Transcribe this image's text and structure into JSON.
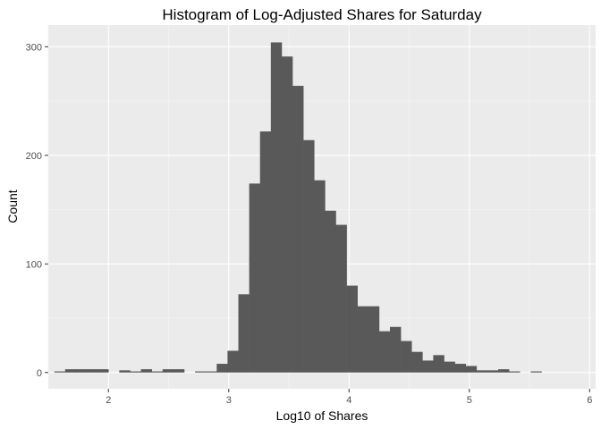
{
  "chart_data": {
    "type": "bar",
    "title": "Histogram of Log-Adjusted Shares for Saturday",
    "xlabel": "Log10 of Shares",
    "ylabel": "Count",
    "xlim": [
      1.5,
      6.05
    ],
    "ylim": [
      -15,
      320
    ],
    "x_ticks": [
      2,
      3,
      4,
      5,
      6
    ],
    "y_ticks": [
      0,
      100,
      200,
      300
    ],
    "x_tick_labels": [
      "2",
      "3",
      "4",
      "5",
      "6"
    ],
    "y_tick_labels": [
      "0",
      "100",
      "200",
      "300"
    ],
    "grid": true,
    "bin_width": 0.09,
    "bin_start": 1.55,
    "values": [
      1,
      3,
      3,
      3,
      3,
      0,
      2,
      1,
      3,
      1,
      3,
      3,
      0,
      1,
      1,
      8,
      20,
      72,
      174,
      222,
      304,
      291,
      264,
      214,
      177,
      149,
      136,
      80,
      61,
      61,
      38,
      42,
      29,
      19,
      11,
      16,
      10,
      8,
      6,
      2,
      2,
      3,
      1,
      0,
      1,
      0,
      0,
      0,
      0,
      0,
      0,
      0,
      0,
      1
    ],
    "colors": {
      "bar": "#595959",
      "panel": "#ebebeb",
      "grid_major": "#ffffff",
      "grid_minor": "#f5f5f5",
      "tick": "#333333"
    }
  }
}
